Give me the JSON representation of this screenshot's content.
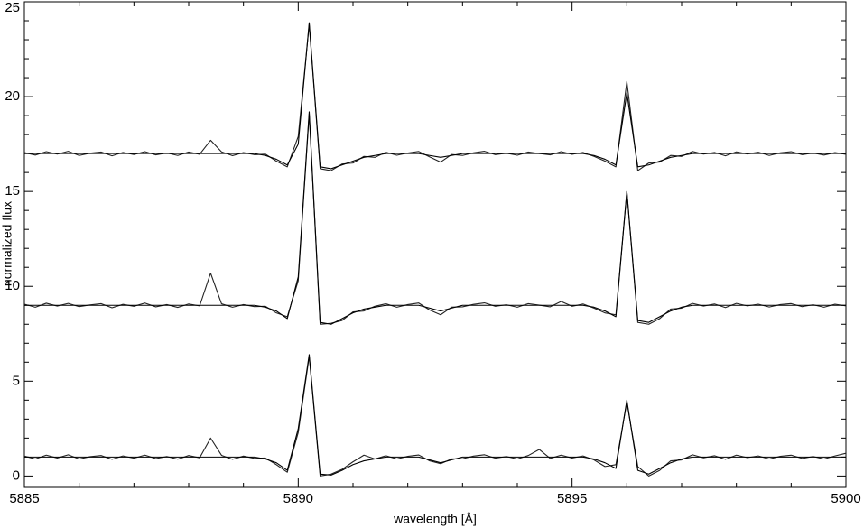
{
  "chart_data": {
    "type": "line",
    "xlabel": "wavelength [Å]",
    "ylabel": "normalized flux",
    "xlim": [
      5885,
      5900
    ],
    "ylim": [
      -0.6,
      25
    ],
    "xticks": [
      5885,
      5890,
      5895,
      5900
    ],
    "yticks": [
      0,
      5,
      10,
      15,
      20,
      25
    ],
    "xminorticks": [
      5886,
      5887,
      5888,
      5889,
      5891,
      5892,
      5893,
      5894,
      5896,
      5897,
      5898,
      5899
    ],
    "yminorticks": [
      1,
      2,
      3,
      4,
      6,
      7,
      8,
      9,
      11,
      12,
      13,
      14,
      16,
      17,
      18,
      19,
      21,
      22,
      23,
      24
    ],
    "grid": false,
    "x": [
      5885,
      5885.2,
      5885.4,
      5885.6,
      5885.8,
      5886,
      5886.2,
      5886.4,
      5886.6,
      5886.8,
      5887,
      5887.2,
      5887.4,
      5887.6,
      5887.8,
      5888,
      5888.2,
      5888.4,
      5888.6,
      5888.8,
      5889,
      5889.2,
      5889.4,
      5889.6,
      5889.8,
      5890,
      5890.2,
      5890.4,
      5890.6,
      5890.8,
      5891,
      5891.2,
      5891.4,
      5891.6,
      5891.8,
      5892,
      5892.2,
      5892.4,
      5892.6,
      5892.8,
      5893,
      5893.2,
      5893.4,
      5893.6,
      5893.8,
      5894,
      5894.2,
      5894.4,
      5894.6,
      5894.8,
      5895,
      5895.2,
      5895.4,
      5895.6,
      5895.8,
      5896,
      5896.2,
      5896.4,
      5896.6,
      5896.8,
      5897,
      5897.2,
      5897.4,
      5897.6,
      5897.8,
      5898,
      5898.2,
      5898.4,
      5898.6,
      5898.8,
      5899,
      5899.2,
      5899.4,
      5899.6,
      5899.8,
      5900
    ],
    "series": [
      {
        "color": "#222222",
        "values": [
          17.05,
          16.92,
          17.1,
          16.97,
          17.12,
          16.9,
          17.02,
          17.08,
          16.88,
          17.06,
          16.95,
          17.1,
          16.93,
          17.03,
          16.9,
          17.08,
          16.96,
          17.7,
          17.09,
          16.89,
          17.05,
          16.94,
          16.97,
          16.6,
          16.3,
          17.9,
          23.8,
          16.2,
          16.1,
          16.45,
          16.5,
          16.85,
          16.8,
          17.07,
          16.91,
          17.03,
          17.11,
          16.82,
          16.55,
          16.95,
          16.9,
          17.04,
          17.12,
          16.94,
          17.02,
          16.91,
          17.08,
          17,
          16.93,
          17.1,
          16.96,
          17.06,
          16.85,
          16.6,
          16.3,
          20.8,
          16.1,
          16.5,
          16.55,
          16.9,
          16.85,
          17.11,
          16.97,
          17.06,
          16.88,
          17.09,
          16.98,
          17.07,
          16.9,
          17.04,
          17.1,
          16.94,
          17.03,
          16.92,
          17.05,
          16.96
        ]
      },
      {
        "color": "#000000",
        "values": [
          17,
          17,
          17,
          17,
          17,
          17,
          17,
          17,
          17,
          17,
          17,
          17,
          17,
          17,
          17,
          17,
          17,
          17,
          17,
          17,
          17,
          17,
          16.9,
          16.7,
          16.4,
          17.5,
          23.9,
          16.3,
          16.2,
          16.4,
          16.6,
          16.8,
          16.9,
          17,
          17,
          17,
          17,
          16.9,
          16.8,
          16.9,
          17,
          17,
          17,
          17,
          17,
          17,
          17,
          17,
          17,
          17,
          17,
          17,
          16.9,
          16.7,
          16.4,
          20.2,
          16.3,
          16.4,
          16.6,
          16.8,
          16.9,
          17,
          17,
          17,
          17,
          17,
          17,
          17,
          17,
          17,
          17,
          17,
          17,
          17,
          17,
          17
        ]
      },
      {
        "color": "#222222",
        "values": [
          9.06,
          8.9,
          9.11,
          8.96,
          9.1,
          8.93,
          9.02,
          9.09,
          8.87,
          9.05,
          8.95,
          9.12,
          8.92,
          9.04,
          8.89,
          9.07,
          8.97,
          10.7,
          9.08,
          8.9,
          9.04,
          8.93,
          8.95,
          8.6,
          8.4,
          10.3,
          19.1,
          8.0,
          8.05,
          8.2,
          8.65,
          8.7,
          8.95,
          9.08,
          8.9,
          9.04,
          9.12,
          8.75,
          8.5,
          8.9,
          8.92,
          9.05,
          9.13,
          8.95,
          9.03,
          8.9,
          9.09,
          9.01,
          8.92,
          9.2,
          8.95,
          9.07,
          8.85,
          8.6,
          8.5,
          15.0,
          8.1,
          8.0,
          8.3,
          8.8,
          8.85,
          9.1,
          8.96,
          9.07,
          8.88,
          9.1,
          8.97,
          9.06,
          8.91,
          9.04,
          9.09,
          8.93,
          9.03,
          8.9,
          9.06,
          8.97
        ]
      },
      {
        "color": "#000000",
        "values": [
          9,
          9,
          9,
          9,
          9,
          9,
          9,
          9,
          9,
          9,
          9,
          9,
          9,
          9,
          9,
          9,
          9,
          9,
          9,
          9,
          9,
          9,
          8.9,
          8.7,
          8.3,
          10.5,
          19.2,
          8.1,
          8.0,
          8.3,
          8.6,
          8.8,
          8.9,
          9,
          9,
          9,
          9,
          8.85,
          8.7,
          8.85,
          9,
          9,
          9,
          9,
          9,
          9,
          9,
          9,
          9,
          9,
          9,
          9,
          8.9,
          8.7,
          8.4,
          15.0,
          8.2,
          8.1,
          8.4,
          8.7,
          8.9,
          9,
          9,
          9,
          9,
          9,
          9,
          9,
          9,
          9,
          9,
          9,
          9,
          9,
          9,
          9
        ]
      },
      {
        "color": "#222222",
        "values": [
          1.05,
          0.9,
          1.1,
          0.95,
          1.12,
          0.9,
          1.02,
          1.08,
          0.88,
          1.06,
          0.94,
          1.1,
          0.92,
          1.03,
          0.89,
          1.08,
          0.96,
          2.0,
          1.09,
          0.88,
          1.05,
          0.93,
          0.95,
          0.6,
          0.2,
          2.3,
          6.3,
          0.0,
          0.1,
          0.35,
          0.75,
          1.1,
          0.9,
          1.07,
          0.9,
          1.04,
          1.11,
          0.8,
          0.65,
          0.9,
          0.91,
          1.05,
          1.12,
          0.94,
          1.03,
          0.9,
          1.08,
          1.4,
          0.93,
          1.1,
          0.95,
          1.06,
          0.85,
          0.5,
          0.6,
          3.9,
          0.5,
          0.0,
          0.3,
          0.8,
          0.85,
          1.12,
          0.96,
          1.07,
          0.88,
          1.1,
          0.97,
          1.06,
          0.9,
          1.04,
          1.1,
          0.93,
          1.03,
          0.9,
          1.06,
          1.2
        ]
      },
      {
        "color": "#000000",
        "values": [
          1,
          1,
          1,
          1,
          1,
          1,
          1,
          1,
          1,
          1,
          1,
          1,
          1,
          1,
          1,
          1,
          1,
          1,
          1,
          1,
          1,
          1,
          0.9,
          0.7,
          0.3,
          2.5,
          6.4,
          0.1,
          0.05,
          0.3,
          0.6,
          0.8,
          0.9,
          1,
          1,
          1,
          1,
          0.85,
          0.7,
          0.85,
          1,
          1,
          1,
          1,
          1,
          1,
          1,
          1,
          1,
          1,
          1,
          1,
          0.9,
          0.7,
          0.4,
          4.0,
          0.3,
          0.1,
          0.4,
          0.7,
          0.9,
          1,
          1,
          1,
          1,
          1,
          1,
          1,
          1,
          1,
          1,
          1,
          1,
          1,
          1,
          1
        ]
      }
    ]
  }
}
